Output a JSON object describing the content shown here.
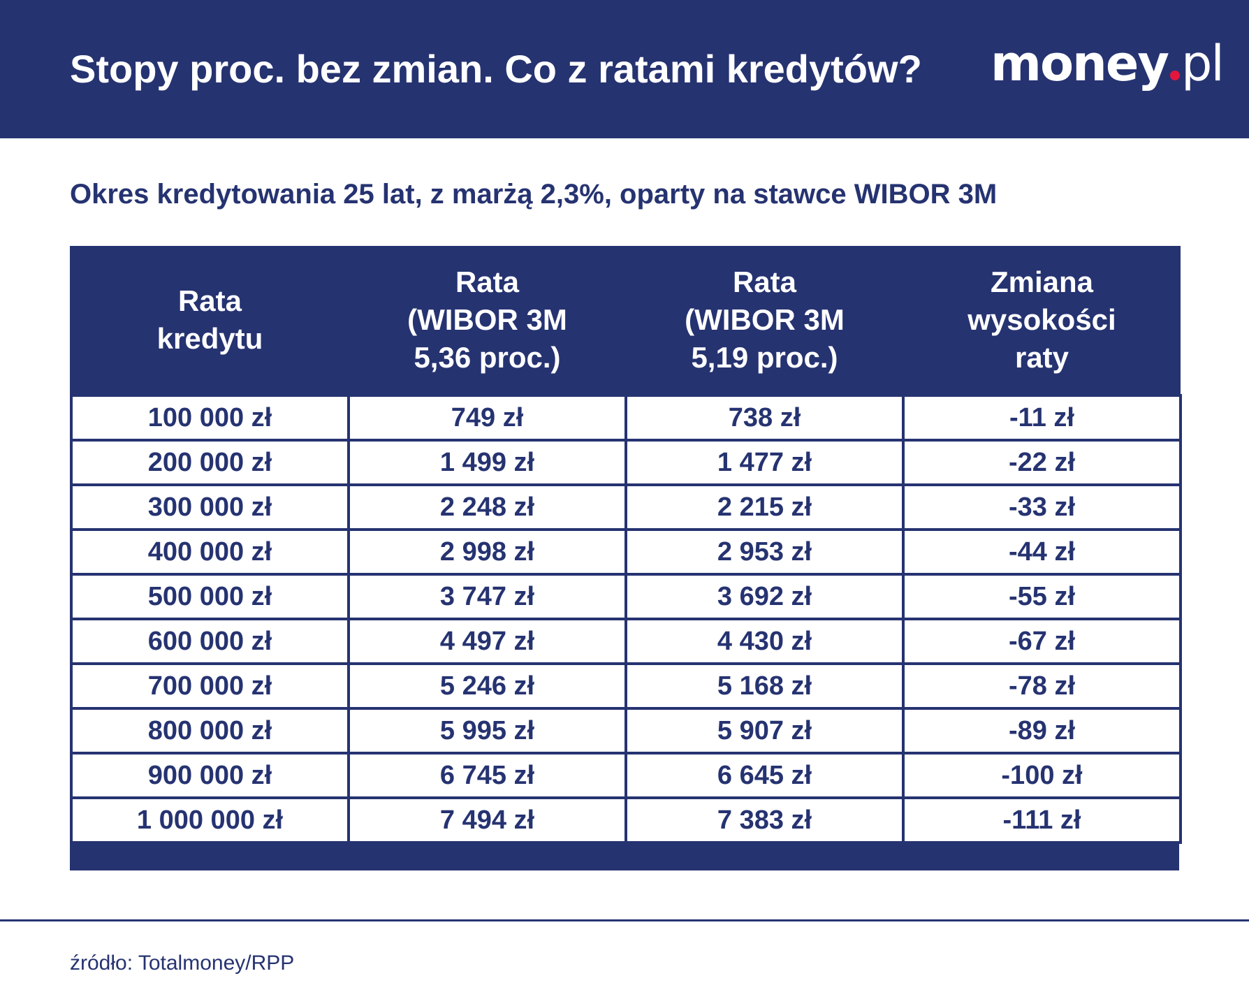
{
  "header": {
    "title": "Stopy proc. bez zmian. Co z ratami kredytów?",
    "logo_text_main": "money",
    "logo_text_suffix": "pl",
    "logo_dot_color": "#e3173e",
    "background_color": "#263371"
  },
  "subtitle": "Okres kredytowania 25 lat, z marżą 2,3%, oparty na stawce WIBOR 3M",
  "table": {
    "headers": [
      [
        "Rata",
        "kredytu"
      ],
      [
        "Rata",
        "(WIBOR 3M",
        "5,36 proc.)"
      ],
      [
        "Rata",
        "(WIBOR 3M",
        "5,19 proc.)"
      ],
      [
        "Zmiana",
        "wysokości",
        "raty"
      ]
    ],
    "rows": [
      [
        "100 000 zł",
        "749 zł",
        "738 zł",
        "-11 zł"
      ],
      [
        "200 000 zł",
        "1 499 zł",
        "1 477 zł",
        "-22 zł"
      ],
      [
        "300 000 zł",
        "2 248 zł",
        "2 215 zł",
        "-33 zł"
      ],
      [
        "400 000 zł",
        "2 998 zł",
        "2 953 zł",
        "-44 zł"
      ],
      [
        "500 000 zł",
        "3 747 zł",
        "3 692 zł",
        "-55 zł"
      ],
      [
        "600 000 zł",
        "4 497 zł",
        "4 430 zł",
        "-67 zł"
      ],
      [
        "700 000 zł",
        "5 246 zł",
        "5 168 zł",
        "-78 zł"
      ],
      [
        "800 000 zł",
        "5 995 zł",
        "5 907 zł",
        "-89 zł"
      ],
      [
        "900 000 zł",
        "6 745 zł",
        "6 645 zł",
        "-100 zł"
      ],
      [
        "1 000 000 zł",
        "7 494 zł",
        "7 383 zł",
        "-111 zł"
      ]
    ]
  },
  "footer": {
    "source": "źródło: Totalmoney/RPP"
  },
  "colors": {
    "primary": "#263371",
    "background": "#ffffff",
    "accent": "#e3173e"
  }
}
